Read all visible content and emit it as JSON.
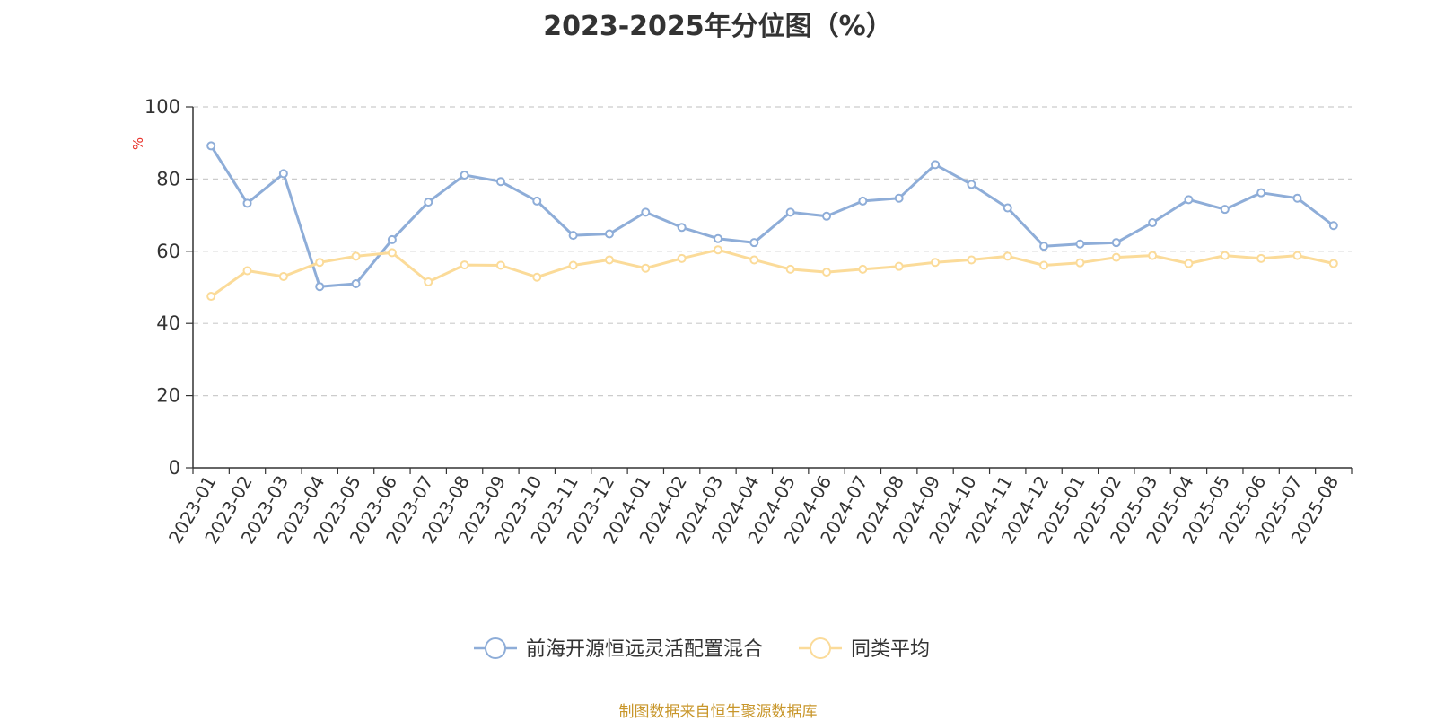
{
  "chart_data": {
    "type": "line",
    "title": "2023-2025年分位图（%）",
    "ylabel": "%",
    "ylim": [
      0,
      100
    ],
    "yticks": [
      0,
      20,
      40,
      60,
      80,
      100
    ],
    "grid": true,
    "legend": "bottom",
    "categories": [
      "2023-01",
      "2023-02",
      "2023-03",
      "2023-04",
      "2023-05",
      "2023-06",
      "2023-07",
      "2023-08",
      "2023-09",
      "2023-10",
      "2023-11",
      "2023-12",
      "2024-01",
      "2024-02",
      "2024-03",
      "2024-04",
      "2024-05",
      "2024-06",
      "2024-07",
      "2024-08",
      "2024-09",
      "2024-10",
      "2024-11",
      "2024-12",
      "2025-01",
      "2025-02",
      "2025-03",
      "2025-04",
      "2025-05",
      "2025-06",
      "2025-07",
      "2025-08"
    ],
    "series": [
      {
        "name": "前海开源恒远灵活配置混合",
        "color": "#8eadd8",
        "values": [
          89.2,
          73.3,
          81.5,
          50.2,
          51.0,
          63.2,
          73.6,
          81.1,
          79.3,
          73.9,
          64.4,
          64.8,
          70.8,
          66.6,
          63.5,
          62.4,
          70.8,
          69.7,
          73.9,
          74.7,
          84.0,
          78.5,
          72.0,
          61.4,
          62.0,
          62.4,
          67.9,
          74.3,
          71.6,
          76.2,
          74.7,
          67.1
        ]
      },
      {
        "name": "同类平均",
        "color": "#fbdb99",
        "values": [
          47.5,
          54.6,
          53.0,
          56.9,
          58.6,
          59.6,
          51.5,
          56.2,
          56.1,
          52.8,
          56.1,
          57.6,
          55.3,
          58.0,
          60.4,
          57.6,
          55.0,
          54.2,
          55.0,
          55.8,
          56.9,
          57.6,
          58.6,
          56.1,
          56.8,
          58.3,
          58.8,
          56.6,
          58.8,
          58.0,
          58.8,
          56.6
        ]
      }
    ]
  },
  "source_note": "制图数据来自恒生聚源数据库"
}
